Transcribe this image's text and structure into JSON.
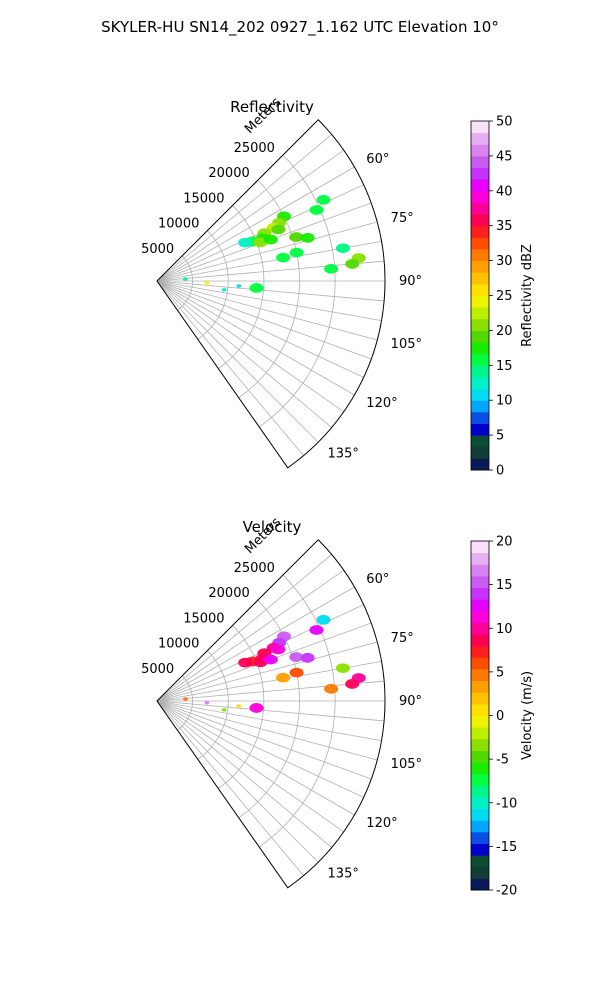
{
  "figure": {
    "title": "SKYLER-HU  SN14_202  0927_1.162 UTC Elevation 10°"
  },
  "chart_data": [
    {
      "type": "heatmap",
      "projection": "polar-sector",
      "title": "Reflectivity",
      "range_label": "Meters",
      "range_max": 32000,
      "range_grid": [
        5000,
        10000,
        15000,
        20000,
        25000
      ],
      "range_tick_labels": [
        "5000",
        "10000",
        "15000",
        "20000",
        "25000"
      ],
      "azimuth_range": [
        45,
        145
      ],
      "azimuth_grid": [
        60,
        75,
        90,
        105,
        120,
        135
      ],
      "azimuth_tick_labels": [
        "60°",
        "75°",
        "90°",
        "105°",
        "120°",
        "135°"
      ],
      "grid": true,
      "colorbar": {
        "label": "Reflectivity dBZ",
        "vmin": 0,
        "vmax": 50,
        "ticks": [
          0,
          5,
          10,
          15,
          20,
          25,
          30,
          35,
          40,
          45,
          50
        ],
        "tick_labels": [
          "0",
          "5",
          "10",
          "15",
          "20",
          "25",
          "30",
          "35",
          "40",
          "45",
          "50"
        ],
        "colors": [
          "#0a1a5a",
          "#123c36",
          "#0b4c34",
          "#0000cd",
          "#0b4ee6",
          "#00a6ff",
          "#00ddf0",
          "#00f0c8",
          "#00f58a",
          "#00ff40",
          "#18ec00",
          "#52d900",
          "#8ae000",
          "#bcef00",
          "#eef400",
          "#ffe000",
          "#ffc000",
          "#ffa000",
          "#ff7a00",
          "#ff4d00",
          "#ff1f1f",
          "#ff0055",
          "#ff0099",
          "#ff00d8",
          "#e800ff",
          "#c633ff",
          "#c85cf0",
          "#d884f0",
          "#e8aef2",
          "#f8e0f8"
        ],
        "position": "right"
      },
      "echoes": [
        {
          "range": 20000,
          "az": 63.0,
          "value": 18
        },
        {
          "range": 19000,
          "az": 64.5,
          "value": 20
        },
        {
          "range": 18000,
          "az": 65.5,
          "value": 22
        },
        {
          "range": 18500,
          "az": 67.0,
          "value": 19
        },
        {
          "range": 16500,
          "az": 66.0,
          "value": 21
        },
        {
          "range": 16000,
          "az": 68.0,
          "value": 17
        },
        {
          "range": 14500,
          "az": 67.5,
          "value": 15
        },
        {
          "range": 15500,
          "az": 69.5,
          "value": 20
        },
        {
          "range": 13500,
          "az": 66.5,
          "value": 12
        },
        {
          "range": 17000,
          "az": 70.0,
          "value": 18
        },
        {
          "range": 20500,
          "az": 72.5,
          "value": 19
        },
        {
          "range": 22000,
          "az": 74.0,
          "value": 17
        },
        {
          "range": 24500,
          "az": 66.0,
          "value": 16
        },
        {
          "range": 26000,
          "az": 64.0,
          "value": 15
        },
        {
          "range": 20000,
          "az": 78.5,
          "value": 16
        },
        {
          "range": 18000,
          "az": 79.5,
          "value": 15
        },
        {
          "range": 24500,
          "az": 86.0,
          "value": 15
        },
        {
          "range": 28500,
          "az": 83.5,
          "value": 20
        },
        {
          "range": 27500,
          "az": 85.0,
          "value": 19
        },
        {
          "range": 26500,
          "az": 80.0,
          "value": 14
        },
        {
          "range": 4000,
          "az": 86.0,
          "value": 14
        },
        {
          "range": 7000,
          "az": 92.0,
          "value": 24
        },
        {
          "range": 11500,
          "az": 93.5,
          "value": 10
        },
        {
          "range": 14000,
          "az": 94.0,
          "value": 15
        },
        {
          "range": 9500,
          "az": 97.5,
          "value": 12
        }
      ]
    },
    {
      "type": "heatmap",
      "projection": "polar-sector",
      "title": "Velocity",
      "range_label": "Meters",
      "range_max": 32000,
      "range_grid": [
        5000,
        10000,
        15000,
        20000,
        25000
      ],
      "range_tick_labels": [
        "5000",
        "10000",
        "15000",
        "20000",
        "25000"
      ],
      "azimuth_range": [
        45,
        145
      ],
      "azimuth_grid": [
        60,
        75,
        90,
        105,
        120,
        135
      ],
      "azimuth_tick_labels": [
        "60°",
        "75°",
        "90°",
        "105°",
        "120°",
        "135°"
      ],
      "grid": true,
      "colorbar": {
        "label": "Velocity (m/s)",
        "vmin": -20,
        "vmax": 20,
        "ticks": [
          -20,
          -15,
          -10,
          -5,
          0,
          5,
          10,
          15,
          20
        ],
        "tick_labels": [
          "-20",
          "-15",
          "-10",
          "-5",
          "0",
          "5",
          "10",
          "15",
          "20"
        ],
        "colors": [
          "#0a1a5a",
          "#123c36",
          "#0b4c34",
          "#0000cd",
          "#0b4ee6",
          "#00a6ff",
          "#00ddf0",
          "#00f0c8",
          "#00f58a",
          "#00ff40",
          "#18ec00",
          "#52d900",
          "#8ae000",
          "#bcef00",
          "#eef400",
          "#ffe000",
          "#ffc000",
          "#ffa000",
          "#ff7a00",
          "#ff4d00",
          "#ff1f1f",
          "#ff0055",
          "#ff0099",
          "#ff00d8",
          "#e800ff",
          "#c633ff",
          "#c85cf0",
          "#d884f0",
          "#e8aef2",
          "#f8e0f8"
        ],
        "position": "right"
      },
      "echoes": [
        {
          "range": 20000,
          "az": 63.0,
          "value": 15
        },
        {
          "range": 19000,
          "az": 64.5,
          "value": 14
        },
        {
          "range": 18000,
          "az": 65.5,
          "value": 10
        },
        {
          "range": 18500,
          "az": 67.0,
          "value": 11
        },
        {
          "range": 16500,
          "az": 66.0,
          "value": 9
        },
        {
          "range": 16000,
          "az": 68.0,
          "value": 8
        },
        {
          "range": 14500,
          "az": 67.5,
          "value": 7
        },
        {
          "range": 15500,
          "az": 69.5,
          "value": 9
        },
        {
          "range": 13500,
          "az": 66.5,
          "value": 8
        },
        {
          "range": 17000,
          "az": 70.0,
          "value": 12
        },
        {
          "range": 20500,
          "az": 72.5,
          "value": 15
        },
        {
          "range": 22000,
          "az": 74.0,
          "value": 14
        },
        {
          "range": 24500,
          "az": 66.0,
          "value": 13
        },
        {
          "range": 26000,
          "az": 64.0,
          "value": -12
        },
        {
          "range": 20000,
          "az": 78.5,
          "value": 6
        },
        {
          "range": 18000,
          "az": 79.5,
          "value": 3
        },
        {
          "range": 24500,
          "az": 86.0,
          "value": 4
        },
        {
          "range": 28500,
          "az": 83.5,
          "value": 10
        },
        {
          "range": 27500,
          "az": 85.0,
          "value": 9
        },
        {
          "range": 26500,
          "az": 80.0,
          "value": -4
        },
        {
          "range": 4000,
          "az": 86.0,
          "value": 5
        },
        {
          "range": 7000,
          "az": 92.0,
          "value": 16
        },
        {
          "range": 11500,
          "az": 93.5,
          "value": 1
        },
        {
          "range": 14000,
          "az": 94.0,
          "value": 11
        },
        {
          "range": 9500,
          "az": 97.5,
          "value": -3
        }
      ]
    }
  ]
}
